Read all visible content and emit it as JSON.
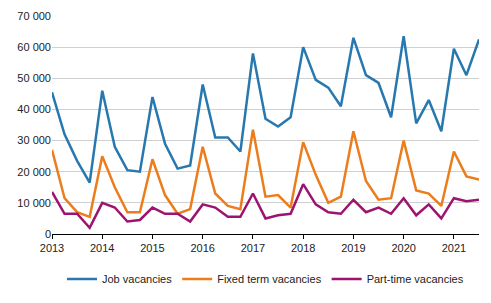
{
  "chart_data": {
    "type": "line",
    "x": [
      2013,
      2013.25,
      2013.5,
      2013.75,
      2014,
      2014.25,
      2014.5,
      2014.75,
      2015,
      2015.25,
      2015.5,
      2015.75,
      2016,
      2016.25,
      2016.5,
      2016.75,
      2017,
      2017.25,
      2017.5,
      2017.75,
      2018,
      2018.25,
      2018.5,
      2018.75,
      2019,
      2019.25,
      2019.5,
      2019.75,
      2020,
      2020.25,
      2020.5,
      2020.75,
      2021,
      2021.25,
      2021.5
    ],
    "series": [
      {
        "name": "Job vacancies",
        "color": "#2878b0",
        "values": [
          45500,
          32000,
          23500,
          16500,
          46000,
          28000,
          20500,
          20000,
          44000,
          29000,
          21000,
          22000,
          48000,
          31000,
          31000,
          26500,
          58000,
          37000,
          34500,
          37500,
          60000,
          49500,
          47000,
          41000,
          63000,
          51000,
          48500,
          37500,
          63500,
          35500,
          43000,
          33000,
          59500,
          51000,
          62500
        ]
      },
      {
        "name": "Fixed term vacancies",
        "color": "#ec7d1c",
        "values": [
          27000,
          11500,
          7000,
          5500,
          25000,
          15000,
          7000,
          7000,
          24000,
          12500,
          6500,
          8000,
          28000,
          13000,
          9000,
          8000,
          33500,
          12000,
          12500,
          8500,
          29500,
          19000,
          10000,
          12000,
          33000,
          17000,
          11000,
          11500,
          30000,
          14000,
          13000,
          9000,
          26500,
          18500,
          17500
        ]
      },
      {
        "name": "Part-time vacancies",
        "color": "#9c1470",
        "values": [
          13500,
          6500,
          6500,
          2000,
          10000,
          8500,
          4000,
          4500,
          8500,
          6500,
          6500,
          4000,
          9500,
          8500,
          5500,
          5500,
          13000,
          5000,
          6000,
          6500,
          16000,
          9500,
          7000,
          6500,
          11000,
          7000,
          8500,
          6500,
          11500,
          6000,
          9500,
          5000,
          11500,
          10500,
          11000
        ]
      }
    ],
    "xlim": [
      2013,
      2021.5
    ],
    "xticks": [
      2013,
      2014,
      2015,
      2016,
      2017,
      2018,
      2019,
      2020,
      2021
    ],
    "ylim": [
      0,
      70000
    ],
    "yticks": [
      0,
      {
        "value": 10000,
        "label": "10 000"
      },
      {
        "value": 20000,
        "label": "20 000"
      },
      {
        "value": 30000,
        "label": "30 000"
      },
      {
        "value": 40000,
        "label": "40 000"
      },
      {
        "value": 50000,
        "label": "50 000"
      },
      {
        "value": 60000,
        "label": "60 000"
      },
      {
        "value": 70000,
        "label": "70 000"
      }
    ],
    "grid": true,
    "legend": "bottom"
  }
}
